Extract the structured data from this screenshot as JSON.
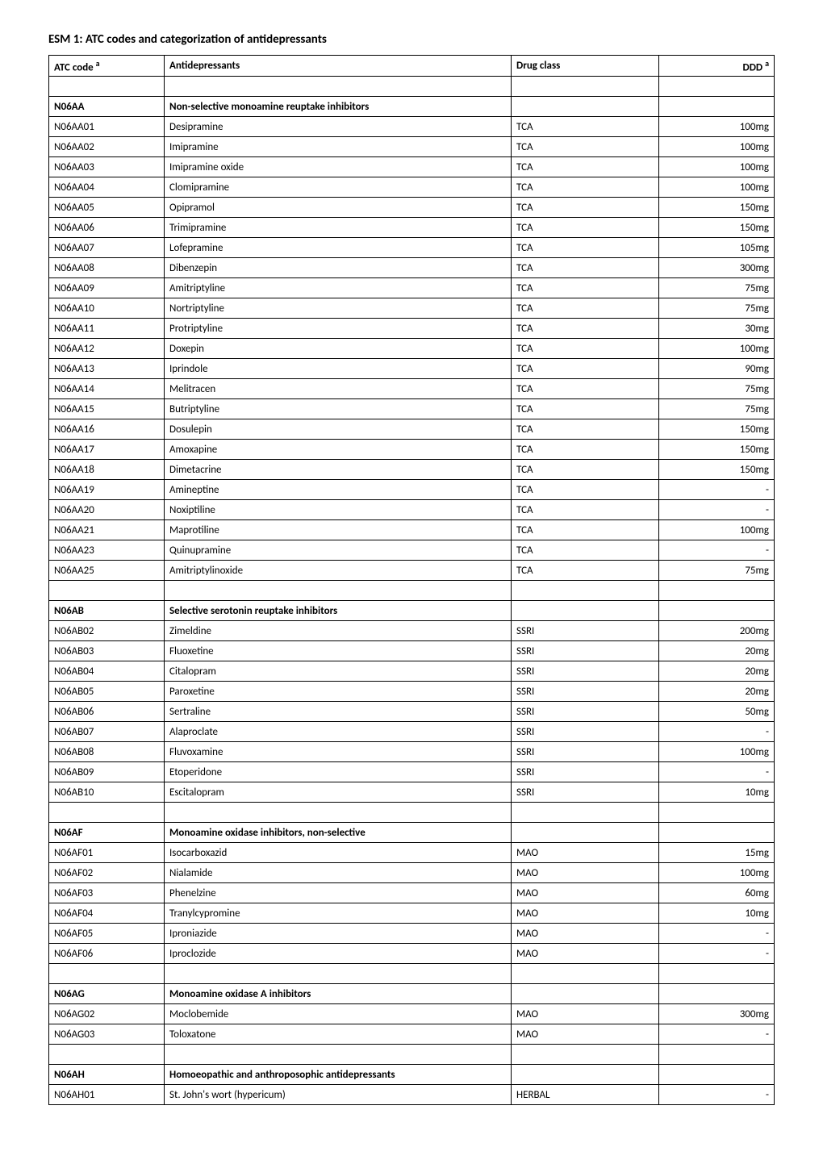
{
  "title": "ESM 1: ATC codes and categorization of antidepressants",
  "columns": {
    "atc": "ATC code ",
    "atc_sup": "a",
    "name": "Antidepressants",
    "class": "Drug class",
    "ddd": "DDD ",
    "ddd_sup": "a"
  },
  "sections": [
    {
      "code": "N06AA",
      "label": "Non-selective monoamine reuptake inhibitors",
      "rows": [
        {
          "atc": "N06AA01",
          "name": "Desipramine",
          "class": "TCA",
          "ddd": "100mg"
        },
        {
          "atc": "N06AA02",
          "name": "Imipramine",
          "class": "TCA",
          "ddd": "100mg"
        },
        {
          "atc": "N06AA03",
          "name": "Imipramine oxide",
          "class": "TCA",
          "ddd": "100mg"
        },
        {
          "atc": "N06AA04",
          "name": "Clomipramine",
          "class": "TCA",
          "ddd": "100mg"
        },
        {
          "atc": "N06AA05",
          "name": "Opipramol",
          "class": "TCA",
          "ddd": "150mg"
        },
        {
          "atc": "N06AA06",
          "name": "Trimipramine",
          "class": "TCA",
          "ddd": "150mg"
        },
        {
          "atc": "N06AA07",
          "name": "Lofepramine",
          "class": "TCA",
          "ddd": "105mg"
        },
        {
          "atc": "N06AA08",
          "name": "Dibenzepin",
          "class": "TCA",
          "ddd": "300mg"
        },
        {
          "atc": "N06AA09",
          "name": "Amitriptyline",
          "class": "TCA",
          "ddd": "75mg"
        },
        {
          "atc": "N06AA10",
          "name": "Nortriptyline",
          "class": "TCA",
          "ddd": "75mg"
        },
        {
          "atc": "N06AA11",
          "name": "Protriptyline",
          "class": "TCA",
          "ddd": "30mg"
        },
        {
          "atc": "N06AA12",
          "name": "Doxepin",
          "class": "TCA",
          "ddd": "100mg"
        },
        {
          "atc": "N06AA13",
          "name": "Iprindole",
          "class": "TCA",
          "ddd": "90mg"
        },
        {
          "atc": "N06AA14",
          "name": "Melitracen",
          "class": "TCA",
          "ddd": "75mg"
        },
        {
          "atc": "N06AA15",
          "name": "Butriptyline",
          "class": "TCA",
          "ddd": "75mg"
        },
        {
          "atc": "N06AA16",
          "name": "Dosulepin",
          "class": "TCA",
          "ddd": "150mg"
        },
        {
          "atc": "N06AA17",
          "name": "Amoxapine",
          "class": "TCA",
          "ddd": "150mg"
        },
        {
          "atc": "N06AA18",
          "name": "Dimetacrine",
          "class": "TCA",
          "ddd": "150mg"
        },
        {
          "atc": "N06AA19",
          "name": "Amineptine",
          "class": "TCA",
          "ddd": "-"
        },
        {
          "atc": "N06AA20",
          "name": "Noxiptiline",
          "class": "TCA",
          "ddd": "-"
        },
        {
          "atc": "N06AA21",
          "name": "Maprotiline",
          "class": "TCA",
          "ddd": "100mg"
        },
        {
          "atc": "N06AA23",
          "name": "Quinupramine",
          "class": "TCA",
          "ddd": "-"
        },
        {
          "atc": "N06AA25",
          "name": "Amitriptylinoxide",
          "class": "TCA",
          "ddd": "75mg"
        }
      ]
    },
    {
      "code": "N06AB",
      "label": "Selective serotonin reuptake inhibitors",
      "rows": [
        {
          "atc": "N06AB02",
          "name": "Zimeldine",
          "class": "SSRI",
          "ddd": "200mg"
        },
        {
          "atc": "N06AB03",
          "name": "Fluoxetine",
          "class": "SSRI",
          "ddd": "20mg"
        },
        {
          "atc": "N06AB04",
          "name": "Citalopram",
          "class": "SSRI",
          "ddd": "20mg"
        },
        {
          "atc": "N06AB05",
          "name": "Paroxetine",
          "class": "SSRI",
          "ddd": "20mg"
        },
        {
          "atc": "N06AB06",
          "name": "Sertraline",
          "class": "SSRI",
          "ddd": "50mg"
        },
        {
          "atc": "N06AB07",
          "name": "Alaproclate",
          "class": "SSRI",
          "ddd": "-"
        },
        {
          "atc": "N06AB08",
          "name": "Fluvoxamine",
          "class": "SSRI",
          "ddd": "100mg"
        },
        {
          "atc": "N06AB09",
          "name": "Etoperidone",
          "class": "SSRI",
          "ddd": "-"
        },
        {
          "atc": "N06AB10",
          "name": "Escitalopram",
          "class": "SSRI",
          "ddd": "10mg"
        }
      ]
    },
    {
      "code": "N06AF",
      "label": "Monoamine oxidase inhibitors, non-selective",
      "rows": [
        {
          "atc": "N06AF01",
          "name": "Isocarboxazid",
          "class": "MAO",
          "ddd": "15mg"
        },
        {
          "atc": "N06AF02",
          "name": "Nialamide",
          "class": "MAO",
          "ddd": "100mg"
        },
        {
          "atc": "N06AF03",
          "name": "Phenelzine",
          "class": "MAO",
          "ddd": "60mg"
        },
        {
          "atc": "N06AF04",
          "name": "Tranylcypromine",
          "class": "MAO",
          "ddd": "10mg"
        },
        {
          "atc": "N06AF05",
          "name": "Iproniazide",
          "class": "MAO",
          "ddd": "-"
        },
        {
          "atc": "N06AF06",
          "name": "Iproclozide",
          "class": "MAO",
          "ddd": "-"
        }
      ]
    },
    {
      "code": "N06AG",
      "label": "Monoamine oxidase A inhibitors",
      "rows": [
        {
          "atc": "N06AG02",
          "name": "Moclobemide",
          "class": "MAO",
          "ddd": "300mg"
        },
        {
          "atc": "N06AG03",
          "name": "Toloxatone",
          "class": "MAO",
          "ddd": "-"
        }
      ]
    },
    {
      "code": "N06AH",
      "label": "Homoeopathic and anthroposophic antidepressants",
      "rows": [
        {
          "atc": "N06AH01",
          "name": "St. John's wort (hypericum)",
          "class": "HERBAL",
          "ddd": "-"
        }
      ]
    }
  ]
}
